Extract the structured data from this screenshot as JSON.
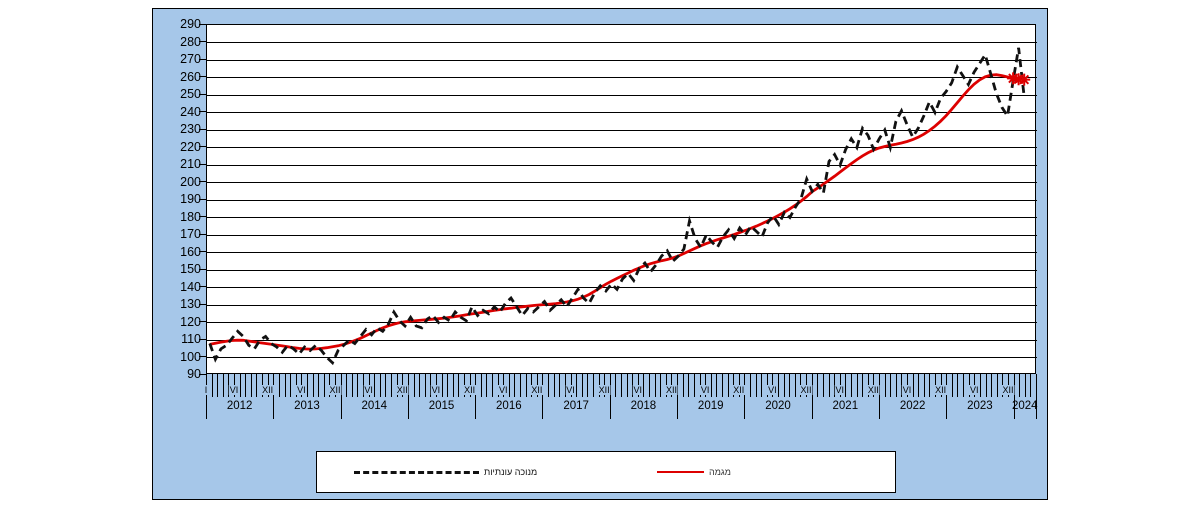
{
  "colors": {
    "panel_background": "#a6c7e9",
    "plot_background": "#ffffff",
    "gridline": "#000000",
    "seasonal_series": "#111111",
    "trend_series": "#dd0000",
    "provisional_marker": "#dd0000"
  },
  "y_axis": {
    "min": 90,
    "max": 290,
    "step": 10,
    "labels": [
      "290",
      "280",
      "270",
      "260",
      "250",
      "240",
      "230",
      "220",
      "210",
      "200",
      "190",
      "180",
      "170",
      "160",
      "150",
      "140",
      "130",
      "120",
      "110",
      "100",
      "90"
    ]
  },
  "x_axis": {
    "year_labels": [
      "2012",
      "2013",
      "2014",
      "2015",
      "2016",
      "2017",
      "2018",
      "2019",
      "2020",
      "2021",
      "2022",
      "2023",
      "2024"
    ],
    "month_label_first": "I",
    "month_label_june": "VI",
    "month_label_december": "XII"
  },
  "legend": {
    "seasonal_label": "מנוכה עונתיות",
    "trend_label": "מגמה"
  },
  "chart_data": {
    "type": "line",
    "frequency": "monthly",
    "start": "2012-01",
    "end": "2024-03",
    "ylim": [
      90,
      290
    ],
    "grid": true,
    "legend_position": "bottom",
    "series": [
      {
        "name": "מנוכה עונתיות",
        "style": "dashed-black",
        "values": [
          108,
          99,
          105,
          107,
          111,
          115,
          112,
          107,
          105,
          110,
          112,
          108,
          106,
          103,
          107,
          105,
          102,
          106,
          104,
          107,
          104,
          100,
          97,
          104,
          107,
          110,
          108,
          112,
          116,
          113,
          117,
          115,
          119,
          126,
          121,
          118,
          123,
          118,
          117,
          122,
          124,
          120,
          123,
          121,
          126,
          123,
          121,
          129,
          124,
          127,
          125,
          129,
          126,
          131,
          134,
          129,
          124,
          128,
          126,
          129,
          132,
          127,
          130,
          133,
          129,
          134,
          139,
          134,
          131,
          137,
          141,
          138,
          142,
          139,
          145,
          148,
          144,
          151,
          154,
          149,
          153,
          158,
          161,
          155,
          158,
          162,
          178,
          168,
          163,
          170,
          166,
          163,
          169,
          173,
          168,
          174,
          170,
          175,
          172,
          169,
          177,
          181,
          176,
          183,
          180,
          186,
          191,
          202,
          195,
          199,
          194,
          212,
          216,
          210,
          219,
          225,
          220,
          231,
          227,
          219,
          225,
          230,
          220,
          235,
          241,
          233,
          226,
          231,
          238,
          246,
          240,
          248,
          252,
          257,
          266,
          261,
          256,
          263,
          268,
          273,
          262,
          251,
          243,
          238,
          258,
          277,
          249
        ]
      },
      {
        "name": "מגמה",
        "style": "solid-red",
        "values": [
          107.5,
          108.2,
          108.8,
          109.3,
          109.7,
          109.9,
          109.8,
          109.4,
          108.9,
          108.4,
          108,
          107.6,
          107.1,
          106.6,
          106.1,
          105.6,
          105.2,
          104.9,
          104.8,
          104.9,
          105.2,
          105.6,
          106.1,
          106.7,
          107.5,
          108.5,
          109.7,
          111,
          112.5,
          114,
          115.5,
          116.9,
          118.1,
          119.1,
          119.9,
          120.4,
          120.8,
          121.1,
          121.4,
          121.6,
          121.9,
          122.2,
          122.5,
          122.9,
          123.4,
          123.9,
          124.4,
          124.9,
          125.4,
          125.9,
          126.4,
          126.9,
          127.4,
          127.8,
          128.2,
          128.6,
          129,
          129.3,
          129.7,
          130,
          130.3,
          130.5,
          130.8,
          131.2,
          131.7,
          132.4,
          133.3,
          134.5,
          136,
          137.9,
          139.9,
          141.9,
          143.6,
          145.2,
          146.8,
          148.3,
          149.8,
          151.2,
          152.5,
          153.6,
          154.5,
          155.3,
          156,
          156.9,
          158,
          159.4,
          160.9,
          162.4,
          163.8,
          165.1,
          166.2,
          167.3,
          168.3,
          169.3,
          170.3,
          171.4,
          172.6,
          173.8,
          175.1,
          176.5,
          178,
          179.6,
          181.3,
          183.1,
          185,
          187.1,
          189.4,
          192,
          194.8,
          196.9,
          199.1,
          201.3,
          203.6,
          206,
          208.4,
          210.8,
          213.1,
          215.2,
          217,
          218.5,
          219.7,
          220.6,
          221.3,
          221.9,
          222.6,
          223.4,
          224.5,
          225.9,
          227.6,
          229.7,
          232.2,
          235,
          238.2,
          241.8,
          245.6,
          249.4,
          253,
          256.1,
          258.6,
          260.4,
          261.4,
          261.6,
          261.1,
          260.3
        ],
        "provisional_marker_values": [
          259.5,
          259,
          258.8
        ],
        "provisional_marker_style": "red-asterisk"
      }
    ]
  }
}
